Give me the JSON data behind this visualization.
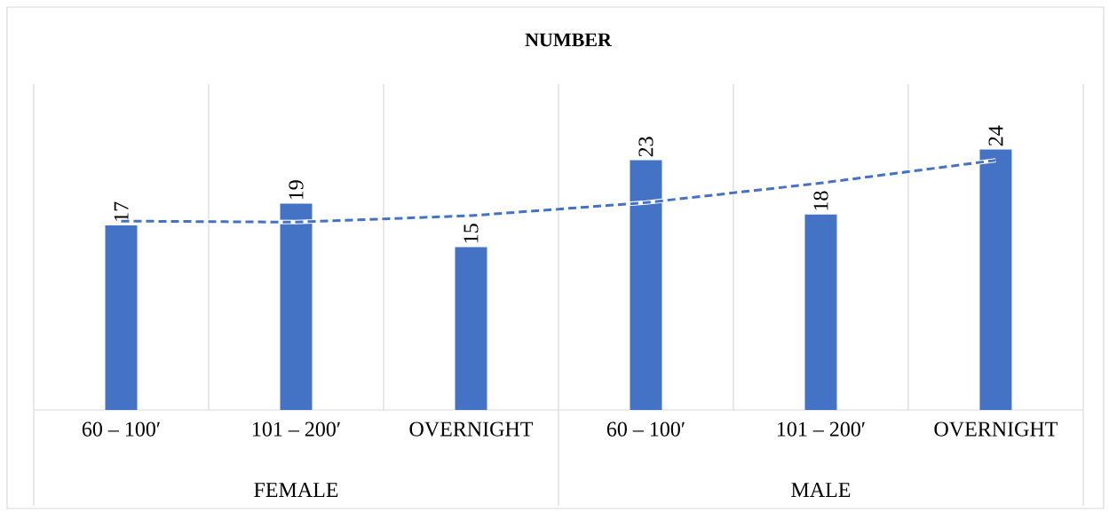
{
  "chart_data": {
    "type": "bar",
    "title": "NUMBER",
    "categories": [
      "60 – 100′",
      "101 – 200′",
      "OVERNIGHT",
      "60 – 100′",
      "101 – 200′",
      "OVERNIGHT"
    ],
    "series": [
      {
        "color": "#4472c4",
        "values": [
          17,
          19,
          15,
          23,
          18,
          24
        ],
        "value_labels": [
          "17",
          "19",
          "15",
          "23",
          "18",
          "24"
        ]
      },
      {
        "type": "line",
        "color": "#4472c4",
        "line_style": "dashed",
        "values": [
          17.4,
          17.3,
          17.9,
          19.1,
          20.9,
          23.0
        ]
      }
    ],
    "ylim": [
      0,
      30
    ],
    "tick_labels": "x",
    "grid": "x",
    "annotations": [
      "FEMALE",
      "MALE"
    ]
  }
}
